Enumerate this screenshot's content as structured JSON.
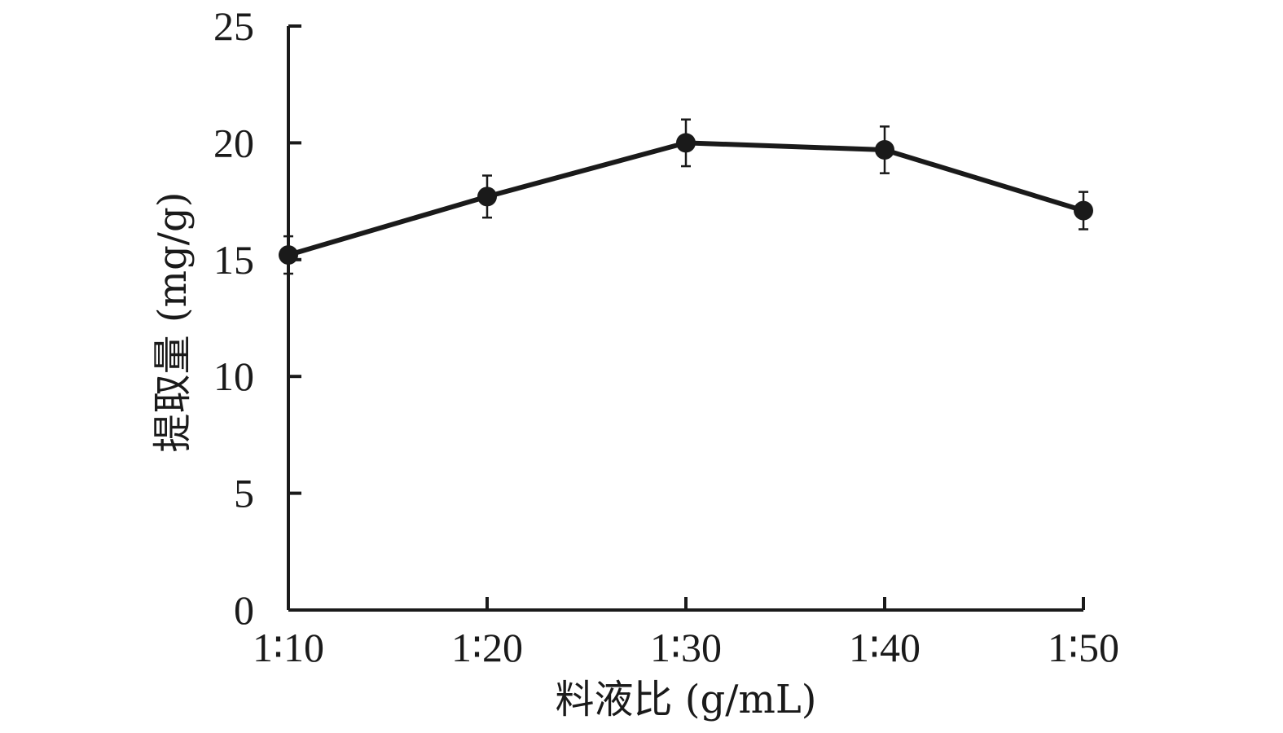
{
  "chart_data": {
    "type": "line",
    "title": "",
    "xlabel": "料液比 (g/mL)",
    "ylabel": "提取量 (mg/g)",
    "categories": [
      "1∶10",
      "1∶20",
      "1∶30",
      "1∶40",
      "1∶50"
    ],
    "ylim": [
      0,
      25
    ],
    "yticks": [
      0,
      5,
      10,
      15,
      20,
      25
    ],
    "grid": false,
    "legend": "none",
    "series": [
      {
        "values": [
          15.2,
          17.7,
          20.0,
          19.7,
          17.1
        ],
        "errors": [
          0.8,
          0.9,
          1.0,
          1.0,
          0.8
        ],
        "color": "#1a1a1a"
      }
    ]
  }
}
